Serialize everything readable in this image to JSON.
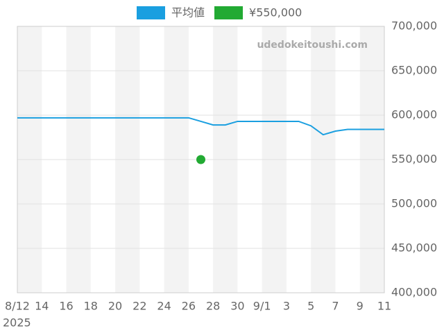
{
  "chart_data": {
    "type": "line",
    "categories": [
      "8/12",
      null,
      "14",
      null,
      "16",
      null,
      "18",
      null,
      "20",
      null,
      "22",
      null,
      "24",
      null,
      "26",
      null,
      "28",
      null,
      "30",
      null,
      "9/1",
      null,
      "3",
      null,
      "5",
      null,
      "7",
      null,
      "9",
      null,
      "11"
    ],
    "x_year": "2025",
    "watermark": "udedokeitoushi.com",
    "series": [
      {
        "name": "平均値",
        "color": "#1a9fe0",
        "style": "line",
        "values": [
          597000,
          597000,
          597000,
          597000,
          597000,
          597000,
          597000,
          597000,
          597000,
          597000,
          597000,
          597000,
          597000,
          597000,
          597000,
          593000,
          589000,
          589000,
          593000,
          593000,
          593000,
          593000,
          593000,
          593000,
          588000,
          578000,
          582000,
          584000,
          584000,
          584000,
          584000
        ]
      },
      {
        "name": "¥550,000",
        "color": "#22aa33",
        "style": "marker",
        "values": [
          null,
          null,
          null,
          null,
          null,
          null,
          null,
          null,
          null,
          null,
          null,
          null,
          null,
          null,
          null,
          550000,
          null,
          null,
          null,
          null,
          null,
          null,
          null,
          null,
          null,
          null,
          null,
          null,
          null,
          null,
          null
        ]
      }
    ],
    "ylim": [
      400000,
      700000
    ],
    "yticks": [
      {
        "value": 400000,
        "label": "400,000"
      },
      {
        "value": 450000,
        "label": "450,000"
      },
      {
        "value": 500000,
        "label": "500,000"
      },
      {
        "value": 550000,
        "label": "550,000"
      },
      {
        "value": 600000,
        "label": "600,000"
      },
      {
        "value": 650000,
        "label": "650,000"
      },
      {
        "value": 700000,
        "label": "700,000"
      }
    ],
    "grid": true,
    "legend": "top"
  }
}
